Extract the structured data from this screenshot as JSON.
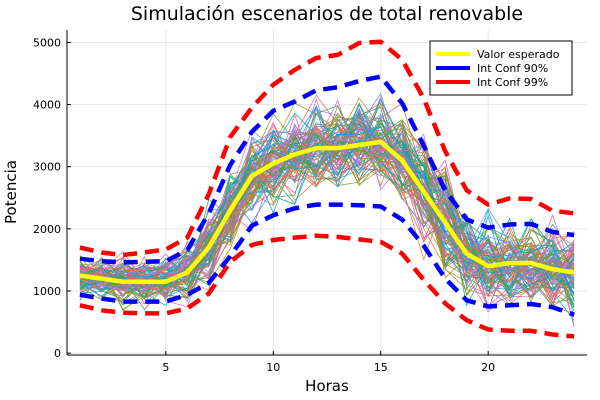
{
  "chart_data": {
    "type": "line",
    "title": "Simulación escenarios de total renovable",
    "xlabel": "Horas",
    "ylabel": "Potencia",
    "xlim": [
      0.4,
      24.6
    ],
    "ylim": [
      -30,
      5200
    ],
    "xticks": [
      5,
      10,
      15,
      20
    ],
    "yticks": [
      0,
      1000,
      2000,
      3000,
      4000,
      5000
    ],
    "grid": true,
    "legend_position": "top-right",
    "x": [
      1,
      2,
      3,
      4,
      5,
      6,
      7,
      8,
      9,
      10,
      11,
      12,
      13,
      14,
      15,
      16,
      17,
      18,
      19,
      20,
      21,
      22,
      23,
      24
    ],
    "scenarios": {
      "count": 100,
      "mean": [
        1250,
        1200,
        1150,
        1150,
        1150,
        1300,
        1700,
        2300,
        2850,
        3050,
        3200,
        3300,
        3300,
        3350,
        3400,
        3100,
        2600,
        2100,
        1600,
        1400,
        1450,
        1450,
        1350,
        1300
      ],
      "spread": [
        160,
        170,
        180,
        180,
        180,
        220,
        280,
        330,
        330,
        330,
        340,
        350,
        350,
        350,
        360,
        380,
        420,
        420,
        340,
        320,
        340,
        340,
        340,
        340
      ],
      "colors": [
        "#009af9",
        "#e26f46",
        "#3da44d",
        "#c271d2",
        "#ac8e18",
        "#00a9ad",
        "#ed5e93",
        "#c68225",
        "#00a98d",
        "#8e971d",
        "#00a8cb",
        "#9b7fe9",
        "#618df6",
        "#f05f73",
        "#dd64b5",
        "#6b9d22"
      ]
    },
    "series": [
      {
        "name": "Valor esperado",
        "color": "#ffff00",
        "style": "solid",
        "values": [
          1250,
          1200,
          1150,
          1150,
          1150,
          1300,
          1700,
          2300,
          2850,
          3050,
          3200,
          3300,
          3300,
          3350,
          3400,
          3100,
          2600,
          2100,
          1600,
          1400,
          1450,
          1450,
          1350,
          1300
        ]
      },
      {
        "name": "Int Conf 90%",
        "color": "#0000ff",
        "style": "dashed",
        "values": [
          1520,
          1480,
          1460,
          1470,
          1480,
          1660,
          2250,
          3030,
          3560,
          3900,
          4050,
          4230,
          4280,
          4380,
          4450,
          4020,
          3340,
          2620,
          2150,
          2020,
          2070,
          2080,
          1950,
          1900
        ],
        "values_lower": [
          940,
          880,
          830,
          830,
          830,
          940,
          1130,
          1560,
          2050,
          2220,
          2330,
          2390,
          2390,
          2380,
          2360,
          2150,
          1730,
          1200,
          850,
          750,
          770,
          790,
          740,
          620
        ]
      },
      {
        "name": "Int Conf 99%",
        "color": "#ff0000",
        "style": "dashed",
        "values": [
          1700,
          1620,
          1580,
          1620,
          1670,
          1860,
          2560,
          3480,
          3950,
          4320,
          4560,
          4750,
          4800,
          4990,
          5010,
          4720,
          4100,
          3250,
          2620,
          2390,
          2490,
          2480,
          2290,
          2250
        ],
        "values_lower": [
          770,
          690,
          650,
          640,
          640,
          720,
          960,
          1470,
          1740,
          1820,
          1860,
          1890,
          1870,
          1830,
          1790,
          1600,
          1180,
          800,
          530,
          380,
          360,
          360,
          300,
          270
        ]
      }
    ]
  }
}
